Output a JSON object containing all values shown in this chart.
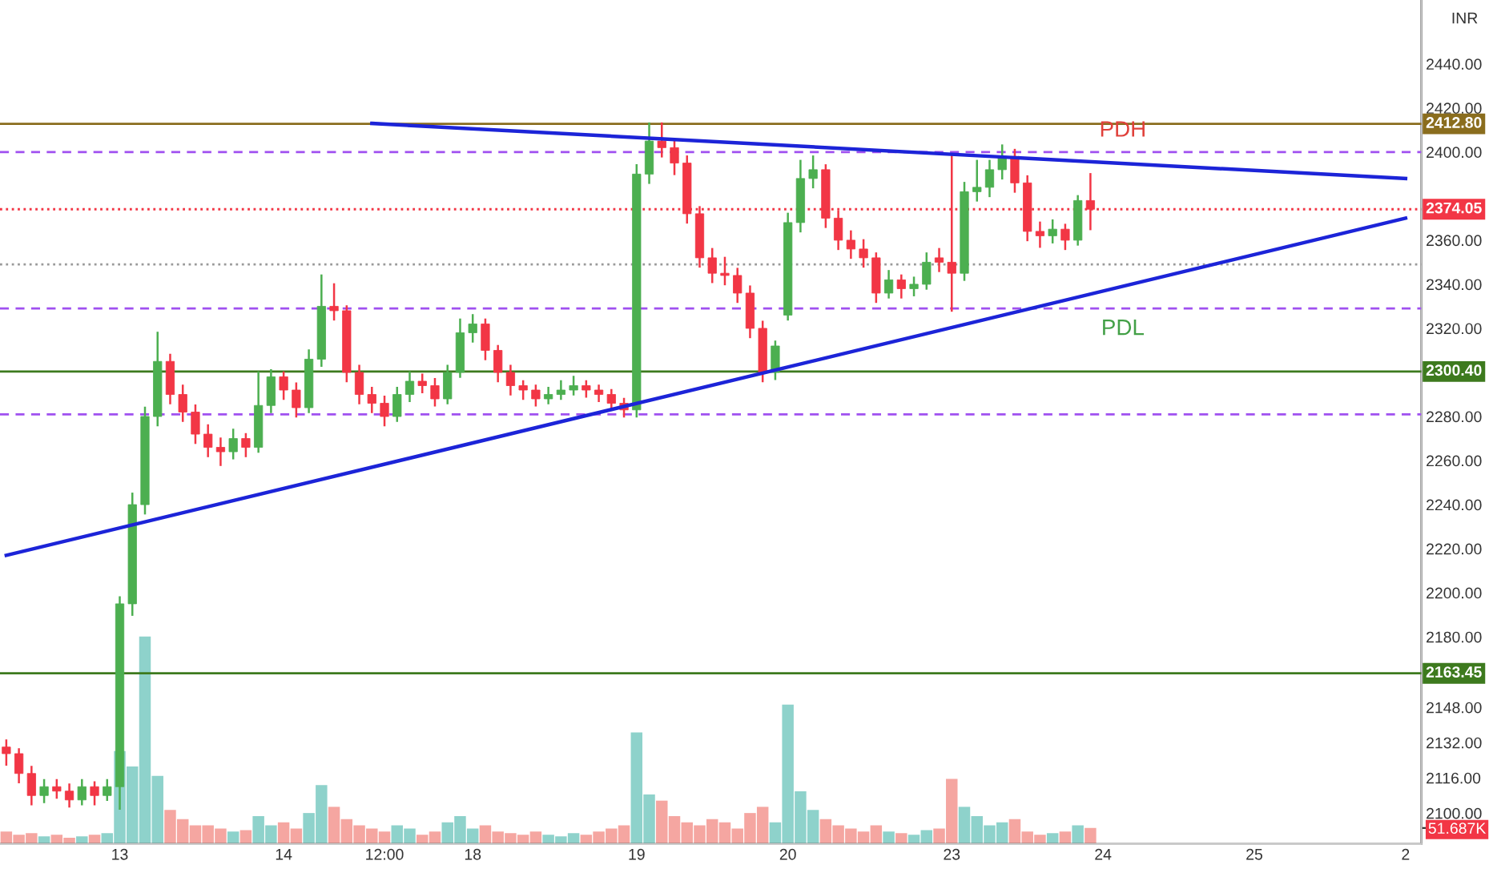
{
  "chart_data": {
    "type": "candlestick",
    "categories": [
      null,
      null,
      null,
      null,
      null,
      null,
      null,
      null,
      null,
      "13",
      null,
      null,
      null,
      null,
      null,
      null,
      null,
      null,
      null,
      null,
      null,
      null,
      "14",
      null,
      null,
      null,
      null,
      null,
      null,
      null,
      "12:00",
      null,
      null,
      null,
      null,
      null,
      null,
      "18",
      null,
      null,
      null,
      null,
      null,
      null,
      null,
      null,
      null,
      null,
      null,
      null,
      "19",
      null,
      null,
      null,
      null,
      null,
      null,
      null,
      null,
      null,
      null,
      null,
      "20",
      null,
      null,
      null,
      null,
      null,
      null,
      null,
      null,
      null,
      null,
      null,
      null,
      "23",
      null,
      null,
      null,
      null,
      null,
      null,
      null,
      null,
      null,
      null,
      null,
      "24",
      null,
      null,
      null,
      null,
      null,
      null,
      null,
      null,
      null,
      null,
      null,
      "25",
      null,
      null,
      null,
      null,
      null,
      null,
      null,
      null,
      null,
      null,
      null,
      "2"
    ],
    "ohlc": [
      [
        2130,
        2133,
        2122,
        2127
      ],
      [
        2127,
        2129,
        2114,
        2118
      ],
      [
        2118,
        2121,
        2104,
        2108
      ],
      [
        2108,
        2115,
        2105,
        2112
      ],
      [
        2112,
        2115,
        2107,
        2110
      ],
      [
        2110,
        2113,
        2103,
        2106
      ],
      [
        2106,
        2115,
        2104,
        2112
      ],
      [
        2112,
        2114,
        2104,
        2108
      ],
      [
        2108,
        2115,
        2106,
        2112
      ],
      [
        2112,
        2198,
        2102,
        2195
      ],
      [
        2195,
        2245,
        2190,
        2240
      ],
      [
        2240,
        2284,
        2236,
        2280
      ],
      [
        2280,
        2318,
        2276,
        2305
      ],
      [
        2305,
        2308,
        2286,
        2290
      ],
      [
        2290,
        2294,
        2278,
        2282
      ],
      [
        2282,
        2285,
        2268,
        2272
      ],
      [
        2272,
        2276,
        2262,
        2266
      ],
      [
        2266,
        2270,
        2258,
        2264
      ],
      [
        2264,
        2274,
        2261,
        2270
      ],
      [
        2270,
        2272,
        2262,
        2266
      ],
      [
        2266,
        2300,
        2264,
        2285
      ],
      [
        2285,
        2301,
        2282,
        2298
      ],
      [
        2298,
        2300,
        2288,
        2292
      ],
      [
        2292,
        2295,
        2280,
        2284
      ],
      [
        2284,
        2310,
        2282,
        2306
      ],
      [
        2306,
        2344,
        2303,
        2330
      ],
      [
        2330,
        2340,
        2324,
        2328
      ],
      [
        2328,
        2330,
        2296,
        2300
      ],
      [
        2300,
        2303,
        2286,
        2290
      ],
      [
        2290,
        2293,
        2282,
        2286
      ],
      [
        2286,
        2289,
        2276,
        2280
      ],
      [
        2280,
        2293,
        2278,
        2290
      ],
      [
        2290,
        2300,
        2287,
        2296
      ],
      [
        2296,
        2299,
        2291,
        2294
      ],
      [
        2294,
        2297,
        2285,
        2288
      ],
      [
        2288,
        2303,
        2286,
        2300
      ],
      [
        2300,
        2324,
        2298,
        2318
      ],
      [
        2318,
        2326,
        2314,
        2322
      ],
      [
        2322,
        2324,
        2306,
        2310
      ],
      [
        2310,
        2312,
        2296,
        2300
      ],
      [
        2300,
        2303,
        2290,
        2294
      ],
      [
        2294,
        2296,
        2288,
        2292
      ],
      [
        2292,
        2294,
        2285,
        2288
      ],
      [
        2288,
        2293,
        2286,
        2290
      ],
      [
        2290,
        2296,
        2288,
        2292
      ],
      [
        2292,
        2298,
        2290,
        2294
      ],
      [
        2294,
        2296,
        2289,
        2292
      ],
      [
        2292,
        2294,
        2287,
        2290
      ],
      [
        2290,
        2292,
        2283,
        2286
      ],
      [
        2286,
        2288,
        2280,
        2283
      ],
      [
        2283,
        2394,
        2280,
        2390
      ],
      [
        2390,
        2413,
        2386,
        2405
      ],
      [
        2405,
        2413,
        2398,
        2402
      ],
      [
        2402,
        2405,
        2390,
        2395
      ],
      [
        2395,
        2398,
        2368,
        2372
      ],
      [
        2372,
        2375,
        2348,
        2352
      ],
      [
        2352,
        2356,
        2341,
        2345
      ],
      [
        2345,
        2352,
        2340,
        2344
      ],
      [
        2344,
        2347,
        2332,
        2336
      ],
      [
        2336,
        2339,
        2316,
        2320
      ],
      [
        2320,
        2323,
        2296,
        2300
      ],
      [
        2300,
        2314,
        2297,
        2312
      ],
      [
        2326,
        2372,
        2324,
        2368
      ],
      [
        2368,
        2396,
        2364,
        2388
      ],
      [
        2388,
        2398,
        2384,
        2392
      ],
      [
        2392,
        2394,
        2366,
        2370
      ],
      [
        2370,
        2373,
        2356,
        2360
      ],
      [
        2360,
        2364,
        2352,
        2356
      ],
      [
        2356,
        2360,
        2348,
        2352
      ],
      [
        2352,
        2354,
        2332,
        2336
      ],
      [
        2336,
        2346,
        2334,
        2342
      ],
      [
        2342,
        2344,
        2334,
        2338
      ],
      [
        2338,
        2343,
        2335,
        2340
      ],
      [
        2340,
        2354,
        2338,
        2350
      ],
      [
        2352,
        2356,
        2346,
        2350
      ],
      [
        2350,
        2398,
        2328,
        2345
      ],
      [
        2345,
        2386,
        2342,
        2382
      ],
      [
        2382,
        2396,
        2378,
        2384
      ],
      [
        2384,
        2396,
        2380,
        2392
      ],
      [
        2392,
        2403,
        2388,
        2398
      ],
      [
        2398,
        2401,
        2382,
        2386
      ],
      [
        2386,
        2389,
        2360,
        2364
      ],
      [
        2364,
        2368,
        2357,
        2362
      ],
      [
        2362,
        2369,
        2359,
        2365
      ],
      [
        2365,
        2367,
        2356,
        2360
      ],
      [
        2360,
        2380,
        2358,
        2378
      ],
      [
        2378,
        2390,
        2365,
        2374.05
      ],
      null,
      null,
      null,
      null,
      null,
      null,
      null,
      null,
      null,
      null,
      null,
      null,
      null,
      null,
      null,
      null,
      null,
      null,
      null,
      null,
      null,
      null,
      null,
      null,
      null
    ],
    "colors": [
      "#f23645",
      "#f23645",
      "#f23645",
      "#4caf50",
      "#f23645",
      "#f23645",
      "#4caf50",
      "#f23645",
      "#4caf50",
      "#4caf50",
      "#4caf50",
      "#4caf50",
      "#4caf50",
      "#f23645",
      "#f23645",
      "#f23645",
      "#f23645",
      "#f23645",
      "#4caf50",
      "#f23645",
      "#4caf50",
      "#4caf50",
      "#f23645",
      "#f23645",
      "#4caf50",
      "#4caf50",
      "#f23645",
      "#f23645",
      "#f23645",
      "#f23645",
      "#f23645",
      "#4caf50",
      "#4caf50",
      "#f23645",
      "#f23645",
      "#4caf50",
      "#4caf50",
      "#4caf50",
      "#f23645",
      "#f23645",
      "#f23645",
      "#f23645",
      "#f23645",
      "#4caf50",
      "#4caf50",
      "#4caf50",
      "#f23645",
      "#f23645",
      "#f23645",
      "#f23645",
      "#4caf50",
      "#4caf50",
      "#f23645",
      "#f23645",
      "#f23645",
      "#f23645",
      "#f23645",
      "#f23645",
      "#f23645",
      "#f23645",
      "#f23645",
      "#4caf50",
      "#4caf50",
      "#4caf50",
      "#4caf50",
      "#f23645",
      "#f23645",
      "#f23645",
      "#f23645",
      "#f23645",
      "#4caf50",
      "#f23645",
      "#4caf50",
      "#4caf50",
      "#f23645",
      "#f23645",
      "#4caf50",
      "#4caf50",
      "#4caf50",
      "#4caf50",
      "#f23645",
      "#f23645",
      "#f23645",
      "#4caf50",
      "#f23645",
      "#4caf50",
      "#f23645",
      null,
      null,
      null,
      null,
      null,
      null,
      null,
      null,
      null,
      null,
      null,
      null,
      null,
      null,
      null,
      null,
      null,
      null,
      null,
      null,
      null,
      null,
      null,
      null,
      null
    ],
    "series": [
      {
        "type": "bar",
        "axis": "y2",
        "values": [
          40,
          30,
          35,
          25,
          30,
          20,
          25,
          30,
          35,
          300,
          250,
          670,
          220,
          110,
          80,
          60,
          60,
          50,
          40,
          45,
          90,
          60,
          70,
          50,
          100,
          190,
          120,
          80,
          60,
          50,
          40,
          60,
          50,
          30,
          40,
          70,
          90,
          50,
          60,
          40,
          35,
          30,
          40,
          30,
          25,
          35,
          30,
          40,
          50,
          60,
          360,
          160,
          140,
          90,
          70,
          60,
          80,
          70,
          50,
          100,
          120,
          70,
          450,
          170,
          110,
          80,
          60,
          50,
          40,
          60,
          40,
          35,
          30,
          45,
          50,
          210,
          120,
          90,
          60,
          70,
          80,
          40,
          30,
          35,
          40,
          60,
          51.687,
          null,
          null,
          null,
          null,
          null,
          null,
          null,
          null,
          null,
          null,
          null,
          null,
          null,
          null,
          null,
          null,
          null,
          null,
          null,
          null,
          null,
          null,
          null,
          null,
          null
        ],
        "colors": [
          "#f5a6a1",
          "#f5a6a1",
          "#f5a6a1",
          "#8ed2cb",
          "#f5a6a1",
          "#f5a6a1",
          "#8ed2cb",
          "#f5a6a1",
          "#8ed2cb",
          "#8ed2cb",
          "#8ed2cb",
          "#8ed2cb",
          "#8ed2cb",
          "#f5a6a1",
          "#f5a6a1",
          "#f5a6a1",
          "#f5a6a1",
          "#f5a6a1",
          "#8ed2cb",
          "#f5a6a1",
          "#8ed2cb",
          "#8ed2cb",
          "#f5a6a1",
          "#f5a6a1",
          "#8ed2cb",
          "#8ed2cb",
          "#f5a6a1",
          "#f5a6a1",
          "#f5a6a1",
          "#f5a6a1",
          "#f5a6a1",
          "#8ed2cb",
          "#8ed2cb",
          "#f5a6a1",
          "#f5a6a1",
          "#8ed2cb",
          "#8ed2cb",
          "#8ed2cb",
          "#f5a6a1",
          "#f5a6a1",
          "#f5a6a1",
          "#f5a6a1",
          "#f5a6a1",
          "#8ed2cb",
          "#8ed2cb",
          "#8ed2cb",
          "#f5a6a1",
          "#f5a6a1",
          "#f5a6a1",
          "#f5a6a1",
          "#8ed2cb",
          "#8ed2cb",
          "#f5a6a1",
          "#f5a6a1",
          "#f5a6a1",
          "#f5a6a1",
          "#f5a6a1",
          "#f5a6a1",
          "#f5a6a1",
          "#f5a6a1",
          "#f5a6a1",
          "#8ed2cb",
          "#8ed2cb",
          "#8ed2cb",
          "#8ed2cb",
          "#f5a6a1",
          "#f5a6a1",
          "#f5a6a1",
          "#f5a6a1",
          "#f5a6a1",
          "#8ed2cb",
          "#f5a6a1",
          "#8ed2cb",
          "#8ed2cb",
          "#f5a6a1",
          "#f5a6a1",
          "#8ed2cb",
          "#8ed2cb",
          "#8ed2cb",
          "#8ed2cb",
          "#f5a6a1",
          "#f5a6a1",
          "#f5a6a1",
          "#8ed2cb",
          "#f5a6a1",
          "#8ed2cb",
          "#f5a6a1",
          null,
          null,
          null,
          null,
          null,
          null,
          null,
          null,
          null,
          null,
          null,
          null,
          null,
          null,
          null,
          null,
          null,
          null,
          null,
          null,
          null,
          null,
          null,
          null,
          null
        ]
      },
      {
        "type": "line",
        "color": "#1c24d8",
        "values": [
          null,
          null,
          null,
          null,
          null,
          null,
          null,
          null,
          null,
          null,
          null,
          null,
          null,
          null,
          null,
          null,
          null,
          null,
          null,
          null,
          null,
          null,
          null,
          null,
          null,
          null,
          null,
          null,
          null,
          2413,
          null,
          null,
          null,
          null,
          null,
          null,
          null,
          null,
          null,
          null,
          null,
          null,
          null,
          null,
          null,
          null,
          null,
          null,
          null,
          null,
          null,
          null,
          null,
          null,
          null,
          null,
          null,
          null,
          null,
          null,
          null,
          null,
          null,
          null,
          null,
          null,
          null,
          null,
          null,
          null,
          null,
          null,
          null,
          null,
          null,
          null,
          null,
          null,
          null,
          null,
          null,
          null,
          null,
          null,
          null,
          null,
          null,
          null,
          null,
          null,
          null,
          null,
          null,
          null,
          null,
          null,
          null,
          null,
          null,
          null,
          null,
          null,
          null,
          null,
          null,
          null,
          null,
          null,
          null,
          null,
          null,
          2388
        ]
      },
      {
        "type": "line",
        "color": "#1c24d8",
        "values": [
          2217,
          null,
          null,
          null,
          null,
          null,
          null,
          null,
          null,
          null,
          null,
          null,
          null,
          null,
          null,
          null,
          null,
          null,
          null,
          null,
          null,
          null,
          null,
          null,
          null,
          null,
          null,
          null,
          null,
          null,
          null,
          null,
          null,
          null,
          null,
          null,
          null,
          null,
          null,
          null,
          null,
          null,
          null,
          null,
          null,
          null,
          null,
          null,
          null,
          null,
          null,
          null,
          null,
          null,
          null,
          null,
          null,
          null,
          null,
          null,
          null,
          null,
          null,
          null,
          null,
          null,
          null,
          null,
          null,
          null,
          null,
          null,
          null,
          null,
          null,
          null,
          null,
          null,
          null,
          null,
          null,
          null,
          null,
          null,
          null,
          null,
          null,
          null,
          null,
          null,
          null,
          null,
          null,
          null,
          null,
          null,
          null,
          null,
          null,
          null,
          null,
          null,
          null,
          null,
          null,
          null,
          null,
          null,
          null,
          null,
          null,
          2370
        ]
      }
    ],
    "ylim": [
      2086,
      2469
    ],
    "yticks": [
      {
        "value": 2100,
        "label": "2100.00"
      },
      {
        "value": 2116,
        "label": "2116.00"
      },
      {
        "value": 2132,
        "label": "2132.00"
      },
      {
        "value": 2148,
        "label": "2148.00"
      },
      {
        "value": 2180,
        "label": "2180.00"
      },
      {
        "value": 2200,
        "label": "2200.00"
      },
      {
        "value": 2220,
        "label": "2220.00"
      },
      {
        "value": 2240,
        "label": "2240.00"
      },
      {
        "value": 2260,
        "label": "2260.00"
      },
      {
        "value": 2280,
        "label": "2280.00"
      },
      {
        "value": 2320,
        "label": "2320.00"
      },
      {
        "value": 2340,
        "label": "2340.00"
      },
      {
        "value": 2360,
        "label": "2360.00"
      },
      {
        "value": 2400,
        "label": "2400.00"
      },
      {
        "value": 2420,
        "label": "2420.00"
      },
      {
        "value": 2440,
        "label": "2440.00"
      }
    ],
    "y2lim": [
      0,
      2725
    ],
    "y2ticks": [
      {
        "value": 51.687,
        "label": "51.687K"
      }
    ],
    "ref_lines": [
      {
        "axis": "y",
        "value": 2412.8,
        "label": "2412.80",
        "color": "#8a6d1e",
        "line_style": "solid"
      },
      {
        "axis": "y",
        "value": 2300.4,
        "label": "2300.40",
        "color": "#3d7a1e",
        "line_style": "solid"
      },
      {
        "axis": "y",
        "value": 2163.45,
        "label": "2163.45",
        "color": "#3d7a1e",
        "line_style": "solid"
      },
      {
        "axis": "y",
        "value": 2374.05,
        "label": "2374.05",
        "color": "#f23645",
        "line_style": "dotted"
      },
      {
        "axis": "y",
        "value": 2349,
        "color": "#9a9a9a",
        "line_style": "dotted"
      },
      {
        "axis": "y",
        "value": 2400,
        "color": "#a050f0",
        "line_style": "dashed"
      },
      {
        "axis": "y",
        "value": 2329,
        "color": "#a050f0",
        "line_style": "dashed"
      },
      {
        "axis": "y",
        "value": 2281,
        "color": "#a050f0",
        "line_style": "dashed"
      }
    ],
    "annotations": [
      "INR",
      "PDH",
      "PDL"
    ],
    "grid": false,
    "legend": false
  }
}
